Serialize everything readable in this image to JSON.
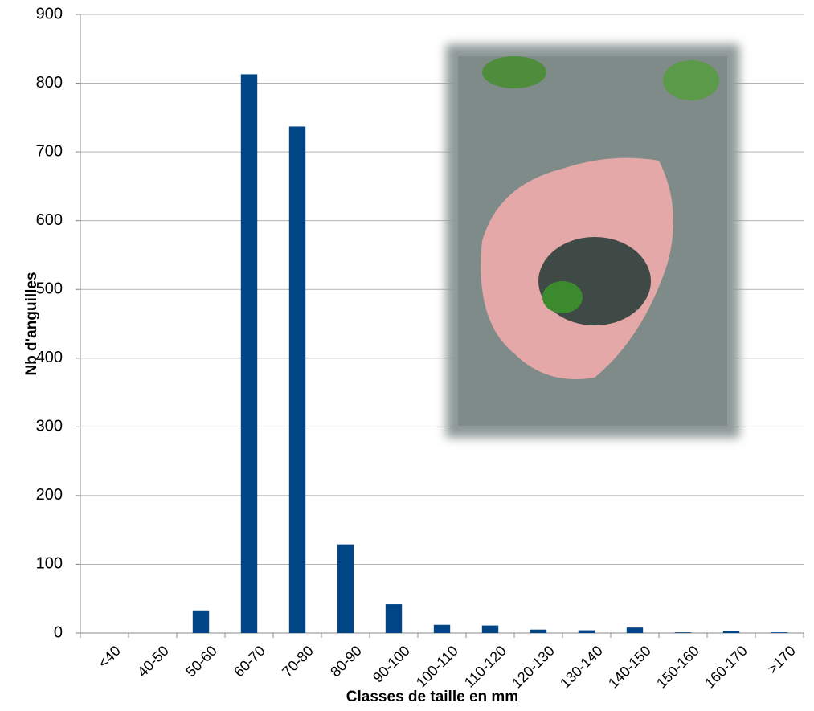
{
  "chart_data": {
    "type": "bar",
    "xlabel": "Classes de taille en mm",
    "ylabel": "Nb d'anguilles",
    "categories": [
      "<40",
      "40-50",
      "50-60",
      "60-70",
      "70-80",
      "80-90",
      "90-100",
      "100-110",
      "110-120",
      "120-130",
      "130-140",
      "140-150",
      "150-160",
      "160-170",
      ">170"
    ],
    "values": [
      0,
      0,
      33,
      813,
      737,
      129,
      42,
      12,
      11,
      5,
      4,
      8,
      1,
      3,
      1
    ],
    "color": "#004586",
    "ylim": [
      0,
      900
    ],
    "yticks": [
      0,
      100,
      200,
      300,
      400,
      500,
      600,
      700,
      800,
      900
    ],
    "grid": true
  }
}
